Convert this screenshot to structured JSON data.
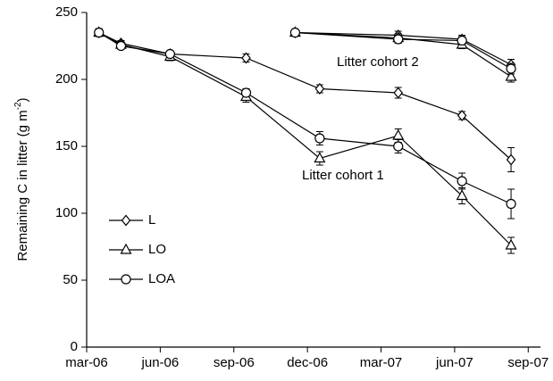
{
  "chart_data": {
    "type": "line",
    "ylabel": [
      "Remaining C in litter (g m",
      "-2",
      ")"
    ],
    "x": [
      0.5,
      1.4,
      3.4,
      6.5,
      9.5,
      12.7,
      15.3,
      17.3
    ],
    "x2": [
      8.5,
      12.7,
      15.3,
      17.3
    ],
    "series": [
      {
        "name": "L",
        "marker": "diamond",
        "color": "#000000",
        "values": [
          235,
          227,
          219,
          216,
          193,
          190,
          173,
          140
        ],
        "errors": [
          3,
          2,
          2,
          3,
          3,
          4,
          3,
          9
        ],
        "values2": [
          235,
          233,
          230,
          211
        ],
        "errors2": [
          2,
          3,
          3,
          4
        ]
      },
      {
        "name": "LO",
        "marker": "triangle",
        "color": "#000000",
        "values": [
          235,
          226,
          217,
          187,
          141,
          158,
          113,
          76
        ],
        "errors": [
          2,
          2,
          3,
          4,
          5,
          5,
          6,
          6
        ],
        "values2": [
          235,
          231,
          226,
          202
        ],
        "errors2": [
          2,
          3,
          3,
          4
        ]
      },
      {
        "name": "LOA",
        "marker": "circle",
        "color": "#000000",
        "values": [
          235,
          225,
          219,
          190,
          156,
          150,
          124,
          107
        ],
        "errors": [
          2,
          2,
          2,
          3,
          5,
          5,
          6,
          11
        ],
        "values2": [
          235,
          230,
          229,
          208
        ],
        "errors2": [
          2,
          3,
          3,
          4
        ]
      }
    ],
    "annotations": [
      "Litter cohort 1",
      "Litter cohort 2"
    ],
    "xlim": [
      0,
      18.5
    ],
    "xticks": [
      {
        "value": 0,
        "label": "mar-06"
      },
      {
        "value": 3,
        "label": "jun-06"
      },
      {
        "value": 6,
        "label": "sep-06"
      },
      {
        "value": 9,
        "label": "dec-06"
      },
      {
        "value": 12,
        "label": "mar-07"
      },
      {
        "value": 15,
        "label": "jun-07"
      },
      {
        "value": 18,
        "label": "sep-07"
      }
    ],
    "ylim": [
      0,
      250
    ],
    "yticks": [
      0,
      50,
      100,
      150,
      200,
      250
    ],
    "legend": "lower left"
  }
}
